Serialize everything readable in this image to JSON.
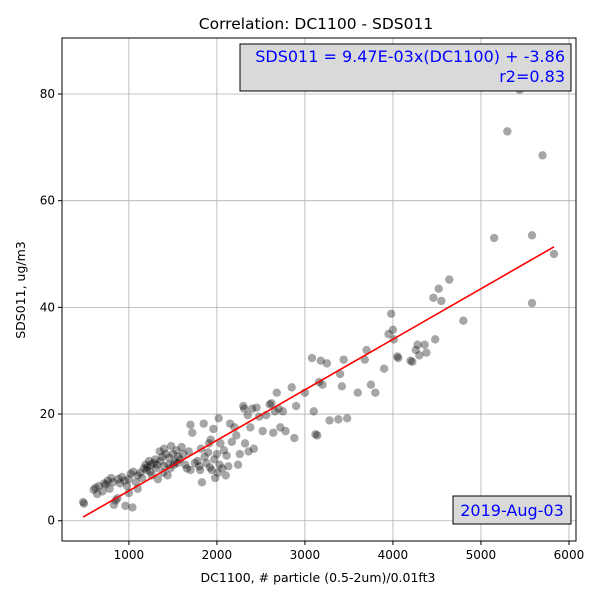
{
  "chart_data": {
    "type": "scatter",
    "title": "Correlation: DC1100 - SDS011",
    "xlabel": "DC1100, # particle (0.5-2um)/0.01ft3",
    "ylabel": "SDS011, ug/m3",
    "xlim": [
      240,
      6080
    ],
    "ylim": [
      -3.8,
      90.5
    ],
    "xticks": [
      1000,
      2000,
      3000,
      4000,
      5000,
      6000
    ],
    "yticks": [
      0,
      20,
      40,
      60,
      80
    ],
    "grid": true,
    "point_color": "#000000",
    "point_alpha": 0.35,
    "fit_color": "#ff0000",
    "annotation_color": "#0000ff",
    "annotation_box_color": "#d9d9d9",
    "fit": {
      "slope": 0.00947,
      "intercept": -3.86,
      "x_range": [
        480,
        5830
      ],
      "equation": "SDS011 = 9.47E-03x(DC1100) + -3.86",
      "r2": "r2=0.83"
    },
    "date_label": "2019-Aug-03",
    "points": [
      [
        480,
        3.5
      ],
      [
        490,
        3.2
      ],
      [
        600,
        5.8
      ],
      [
        620,
        6.2
      ],
      [
        640,
        5.0
      ],
      [
        660,
        6.5
      ],
      [
        700,
        5.5
      ],
      [
        720,
        7.0
      ],
      [
        740,
        6.8
      ],
      [
        760,
        7.5
      ],
      [
        780,
        6.0
      ],
      [
        800,
        8.0
      ],
      [
        820,
        7.2
      ],
      [
        830,
        3.0
      ],
      [
        850,
        3.8
      ],
      [
        870,
        4.2
      ],
      [
        880,
        7.8
      ],
      [
        900,
        7.0
      ],
      [
        920,
        8.2
      ],
      [
        950,
        7.5
      ],
      [
        960,
        2.8
      ],
      [
        980,
        6.5
      ],
      [
        1000,
        5.2
      ],
      [
        1000,
        7.8
      ],
      [
        1020,
        8.8
      ],
      [
        1040,
        2.5
      ],
      [
        1050,
        9.2
      ],
      [
        1080,
        7.2
      ],
      [
        1100,
        6.0
      ],
      [
        1100,
        8.5
      ],
      [
        1130,
        9.0
      ],
      [
        1150,
        8.0
      ],
      [
        1170,
        9.8
      ],
      [
        1190,
        10.5
      ],
      [
        1200,
        9.5
      ],
      [
        1210,
        10.0
      ],
      [
        1230,
        11.2
      ],
      [
        1240,
        9.2
      ],
      [
        1250,
        10.5
      ],
      [
        1260,
        8.5
      ],
      [
        1280,
        10.8
      ],
      [
        1300,
        11.5
      ],
      [
        1310,
        9.8
      ],
      [
        1320,
        10.5
      ],
      [
        1330,
        7.8
      ],
      [
        1350,
        13.0
      ],
      [
        1360,
        11.2
      ],
      [
        1380,
        12.0
      ],
      [
        1390,
        9.0
      ],
      [
        1400,
        10.2
      ],
      [
        1400,
        13.5
      ],
      [
        1420,
        12.5
      ],
      [
        1440,
        8.5
      ],
      [
        1450,
        10.5
      ],
      [
        1460,
        11.8
      ],
      [
        1470,
        9.8
      ],
      [
        1480,
        14.0
      ],
      [
        1500,
        12.5
      ],
      [
        1510,
        10.5
      ],
      [
        1520,
        11.0
      ],
      [
        1540,
        13.2
      ],
      [
        1550,
        10.8
      ],
      [
        1560,
        12.0
      ],
      [
        1580,
        11.5
      ],
      [
        1600,
        13.8
      ],
      [
        1620,
        12.5
      ],
      [
        1640,
        10.5
      ],
      [
        1660,
        9.8
      ],
      [
        1680,
        13.0
      ],
      [
        1700,
        9.5
      ],
      [
        1700,
        18.0
      ],
      [
        1720,
        16.5
      ],
      [
        1750,
        10.8
      ],
      [
        1780,
        11.2
      ],
      [
        1800,
        10.2
      ],
      [
        1810,
        9.5
      ],
      [
        1820,
        13.5
      ],
      [
        1830,
        7.2
      ],
      [
        1850,
        18.2
      ],
      [
        1860,
        12.0
      ],
      [
        1880,
        10.8
      ],
      [
        1900,
        12.8
      ],
      [
        1910,
        14.5
      ],
      [
        1920,
        10.0
      ],
      [
        1930,
        15.2
      ],
      [
        1940,
        9.5
      ],
      [
        1960,
        17.2
      ],
      [
        1970,
        11.5
      ],
      [
        1980,
        8.0
      ],
      [
        2000,
        12.5
      ],
      [
        2010,
        9.0
      ],
      [
        2020,
        19.2
      ],
      [
        2030,
        10.5
      ],
      [
        2040,
        14.5
      ],
      [
        2060,
        9.8
      ],
      [
        2080,
        13.2
      ],
      [
        2100,
        8.5
      ],
      [
        2110,
        12.2
      ],
      [
        2130,
        10.2
      ],
      [
        2150,
        18.2
      ],
      [
        2170,
        14.8
      ],
      [
        2200,
        17.5
      ],
      [
        2220,
        16.0
      ],
      [
        2240,
        10.5
      ],
      [
        2260,
        12.5
      ],
      [
        2300,
        21.5
      ],
      [
        2310,
        21.0
      ],
      [
        2320,
        14.5
      ],
      [
        2350,
        19.8
      ],
      [
        2360,
        13.0
      ],
      [
        2380,
        17.5
      ],
      [
        2400,
        21.0
      ],
      [
        2420,
        13.5
      ],
      [
        2450,
        21.2
      ],
      [
        2480,
        19.5
      ],
      [
        2520,
        16.8
      ],
      [
        2560,
        19.8
      ],
      [
        2600,
        21.8
      ],
      [
        2620,
        22.0
      ],
      [
        2640,
        16.5
      ],
      [
        2660,
        20.5
      ],
      [
        2680,
        24.0
      ],
      [
        2700,
        21.0
      ],
      [
        2720,
        17.5
      ],
      [
        2750,
        20.5
      ],
      [
        2780,
        16.8
      ],
      [
        2850,
        25.0
      ],
      [
        2880,
        15.5
      ],
      [
        2900,
        21.5
      ],
      [
        3000,
        24.0
      ],
      [
        3080,
        30.5
      ],
      [
        3100,
        20.5
      ],
      [
        3120,
        16.2
      ],
      [
        3140,
        16.0
      ],
      [
        3160,
        26.0
      ],
      [
        3180,
        30.0
      ],
      [
        3200,
        25.5
      ],
      [
        3250,
        29.5
      ],
      [
        3280,
        18.8
      ],
      [
        3380,
        19.0
      ],
      [
        3400,
        27.5
      ],
      [
        3420,
        25.2
      ],
      [
        3440,
        30.2
      ],
      [
        3480,
        19.2
      ],
      [
        3600,
        24.0
      ],
      [
        3680,
        30.2
      ],
      [
        3700,
        32.0
      ],
      [
        3750,
        25.5
      ],
      [
        3800,
        24.0
      ],
      [
        3900,
        28.5
      ],
      [
        3950,
        35.0
      ],
      [
        3980,
        38.8
      ],
      [
        4000,
        35.8
      ],
      [
        4010,
        34.0
      ],
      [
        4050,
        30.8
      ],
      [
        4060,
        30.5
      ],
      [
        4200,
        30.0
      ],
      [
        4220,
        29.8
      ],
      [
        4260,
        32.0
      ],
      [
        4280,
        33.0
      ],
      [
        4300,
        31.0
      ],
      [
        4360,
        33.0
      ],
      [
        4380,
        31.5
      ],
      [
        4460,
        41.8
      ],
      [
        4480,
        34.0
      ],
      [
        4520,
        43.5
      ],
      [
        4550,
        41.2
      ],
      [
        4640,
        45.2
      ],
      [
        4800,
        37.5
      ],
      [
        5150,
        53.0
      ],
      [
        5300,
        73.0
      ],
      [
        5440,
        80.8
      ],
      [
        5580,
        53.5
      ],
      [
        5580,
        40.8
      ],
      [
        5700,
        68.5
      ],
      [
        5830,
        50.0
      ]
    ]
  }
}
